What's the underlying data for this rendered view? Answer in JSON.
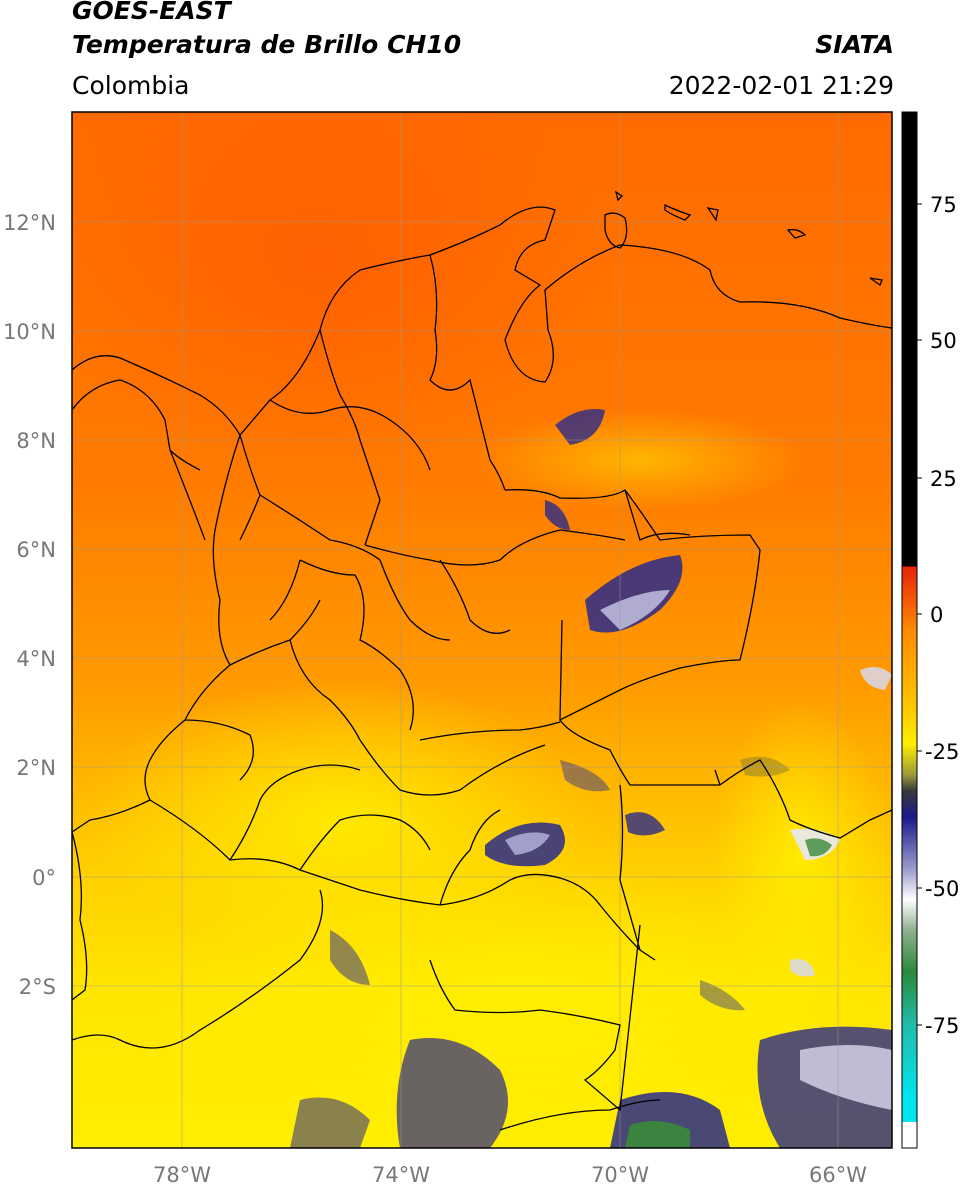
{
  "header": {
    "satellite": "GOES-EAST",
    "product": "Temperatura de Brillo CH10",
    "brand": "SIATA",
    "region": "Colombia",
    "datetime": "2022-02-01 21:29"
  },
  "map": {
    "lon_range": [
      -80,
      -65
    ],
    "lat_range": [
      -5,
      14
    ],
    "lat_ticks": [
      "12°N",
      "10°N",
      "8°N",
      "6°N",
      "4°N",
      "2°N",
      "0°",
      "2°S"
    ],
    "lon_ticks": [
      "78°W",
      "74°W",
      "70°W",
      "66°W"
    ]
  },
  "colorbar": {
    "ticks": [
      "75",
      "50",
      "25",
      "0",
      "-25",
      "-50",
      "-75"
    ],
    "range": [
      -95,
      90
    ],
    "colors": {
      "black": "#000000",
      "red": "#e8220a",
      "orange": "#ff8a00",
      "yellow": "#ffee00",
      "olive": "#6b6a2a",
      "navy": "#1a1a8a",
      "white": "#ffffff",
      "green": "#2c8a3a",
      "teal": "#22bbaa",
      "cyan": "#00e5ee"
    }
  }
}
